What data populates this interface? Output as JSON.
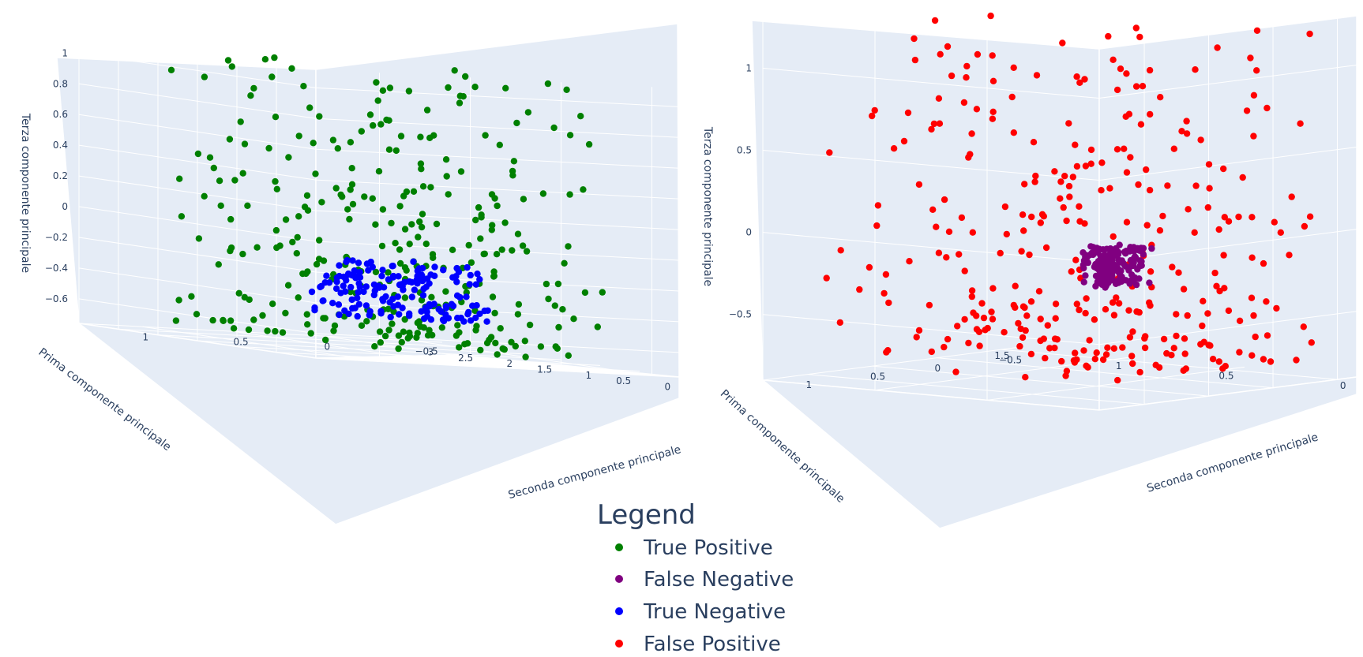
{
  "chart_data": [
    {
      "type": "scatter",
      "plot": "left",
      "xlabel": "Prima componente principale",
      "ylabel": "Seconda componente principale",
      "zlabel": "Terza componente principale",
      "x_ticks": [
        "3",
        "2.5",
        "2",
        "1.5",
        "1",
        "0.5",
        "0"
      ],
      "y_ticks": [
        "−0.5",
        "0",
        "0.5",
        "1"
      ],
      "z_ticks": [
        "1",
        "0.8",
        "0.6",
        "0.4",
        "0.2",
        "0",
        "−0.2",
        "−0.4",
        "−0.6"
      ],
      "xlim": [
        -0.2,
        3.0
      ],
      "ylim": [
        -0.6,
        1.1
      ],
      "zlim": [
        -0.7,
        1.05
      ],
      "series": [
        {
          "name": "True Positive",
          "color": "#008000",
          "cluster": {
            "x": [
              0.3,
              2.9
            ],
            "y": [
              -0.3,
              1.0
            ],
            "z": [
              -0.65,
              1.0
            ]
          }
        },
        {
          "name": "True Negative",
          "color": "#0000ff",
          "cluster": {
            "x": [
              -0.1,
              0.3
            ],
            "y": [
              -0.5,
              0.3
            ],
            "z": [
              -0.45,
              -0.1
            ]
          }
        }
      ]
    },
    {
      "type": "scatter",
      "plot": "right",
      "xlabel": "Prima componente principale",
      "ylabel": "Seconda componente principale",
      "zlabel": "Terza componente principale",
      "x_ticks": [
        "1.5",
        "1",
        "0.5",
        "0"
      ],
      "y_ticks": [
        "−0.5",
        "0",
        "0.5",
        "1"
      ],
      "z_ticks": [
        "1",
        "0.5",
        "0",
        "−0.5"
      ],
      "xlim": [
        -0.1,
        1.7
      ],
      "ylim": [
        -0.7,
        1.3
      ],
      "zlim": [
        -0.7,
        1.15
      ],
      "series": [
        {
          "name": "False Positive",
          "color": "#ff0000",
          "cluster": {
            "x": [
              0.0,
              1.6
            ],
            "y": [
              -0.5,
              1.2
            ],
            "z": [
              -0.6,
              1.1
            ]
          }
        },
        {
          "name": "False Negative",
          "color": "#800080",
          "cluster": {
            "x": [
              -0.05,
              0.15
            ],
            "y": [
              -0.5,
              -0.2
            ],
            "z": [
              -0.1,
              0.1
            ]
          }
        }
      ]
    }
  ],
  "legend": {
    "title": "Legend",
    "items": [
      {
        "label": "True Positive",
        "color": "#008000"
      },
      {
        "label": "False Negative",
        "color": "#800080"
      },
      {
        "label": "True Negative",
        "color": "#0000ff"
      },
      {
        "label": "False Positive",
        "color": "#ff0000"
      }
    ]
  }
}
